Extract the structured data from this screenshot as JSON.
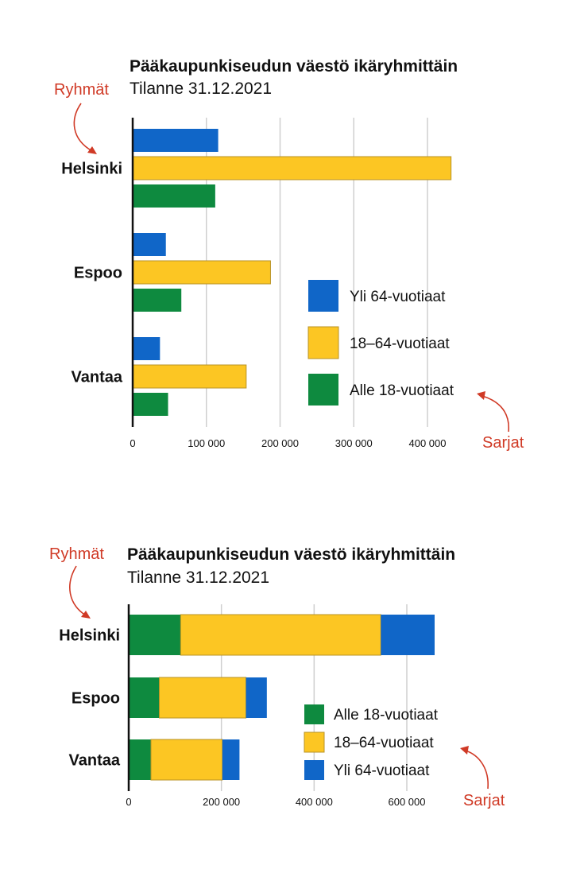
{
  "colors": {
    "Yli 64-vuotiaat": "#1066c8",
    "18–64-vuotiaat": "#fcc623",
    "Alle 18-vuotiaat": "#0e8a3f",
    "annotation": "#d03a26"
  },
  "chart_data": [
    {
      "type": "bar",
      "orientation": "horizontal",
      "layout": "grouped",
      "title": "Pääkaupunkiseudun väestö ikäryhmittäin",
      "subtitle": "Tilanne 31.12.2021",
      "categories": [
        "Helsinki",
        "Espoo",
        "Vantaa"
      ],
      "series": [
        {
          "name": "Yli 64-vuotiaat",
          "values": [
            116000,
            45000,
            37000
          ]
        },
        {
          "name": "18–64-vuotiaat",
          "values": [
            432000,
            187000,
            154000
          ]
        },
        {
          "name": "Alle 18-vuotiaat",
          "values": [
            112000,
            66000,
            48000
          ]
        }
      ],
      "xlim": [
        0,
        400000
      ],
      "xticks": [
        0,
        100000,
        200000,
        300000,
        400000
      ],
      "xtick_labels": [
        "0",
        "100 000",
        "200 000",
        "300 000",
        "400 000"
      ],
      "grid": true,
      "legend": {
        "placement": "bottom-right",
        "entries": [
          "Yli 64-vuotiaat",
          "18–64-vuotiaat",
          "Alle 18-vuotiaat"
        ]
      },
      "annotations": {
        "groups": "Ryhmät",
        "series": "Sarjat"
      }
    },
    {
      "type": "bar",
      "orientation": "horizontal",
      "layout": "stacked",
      "title": "Pääkaupunkiseudun väestö ikäryhmittäin",
      "subtitle": "Tilanne 31.12.2021",
      "categories": [
        "Helsinki",
        "Espoo",
        "Vantaa"
      ],
      "series": [
        {
          "name": "Alle 18-vuotiaat",
          "values": [
            112000,
            66000,
            48000
          ]
        },
        {
          "name": "18–64-vuotiaat",
          "values": [
            432000,
            187000,
            154000
          ]
        },
        {
          "name": "Yli 64-vuotiaat",
          "values": [
            116000,
            45000,
            37000
          ]
        }
      ],
      "xlim": [
        0,
        600000
      ],
      "xticks": [
        0,
        200000,
        400000,
        600000
      ],
      "xtick_labels": [
        "0",
        "200 000",
        "400 000",
        "600 000"
      ],
      "grid": true,
      "legend": {
        "placement": "bottom-right",
        "entries": [
          "Alle 18-vuotiaat",
          "18–64-vuotiaat",
          "Yli 64-vuotiaat"
        ]
      },
      "annotations": {
        "groups": "Ryhmät",
        "series": "Sarjat"
      }
    }
  ]
}
